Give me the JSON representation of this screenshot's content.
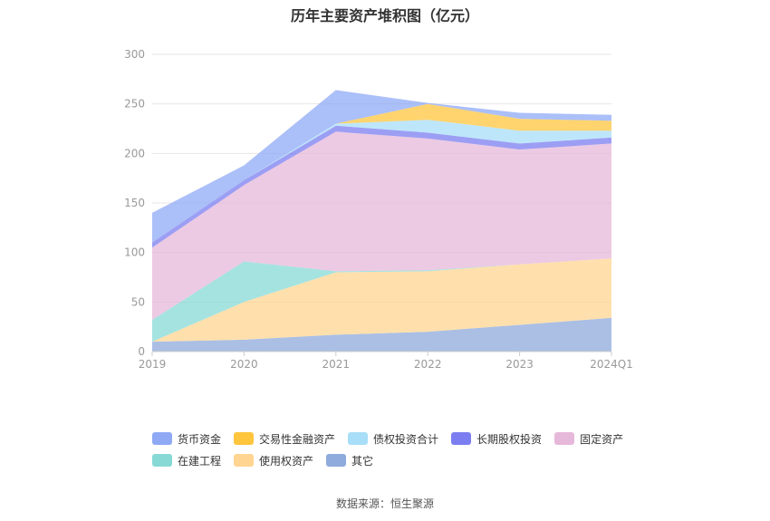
{
  "chart_data": {
    "type": "area",
    "title": "历年主要资产堆积图（亿元）",
    "x": [
      "2019",
      "2020",
      "2021",
      "2022",
      "2023",
      "2024Q1"
    ],
    "yticks": [
      "0",
      "50",
      "100",
      "150",
      "200",
      "250",
      "300"
    ],
    "ylim": [
      0,
      300
    ],
    "grid": true,
    "legend_position": "bottom",
    "series": [
      {
        "name": "其它",
        "color": "#8faadc",
        "values": [
          10,
          12,
          17,
          20,
          27,
          34
        ]
      },
      {
        "name": "使用权资产",
        "color": "#ffd591",
        "values": [
          0,
          38,
          63,
          61,
          61,
          60
        ]
      },
      {
        "name": "在建工程",
        "color": "#87d9d5",
        "values": [
          22,
          41,
          1,
          1,
          0,
          0
        ]
      },
      {
        "name": "固定资产",
        "color": "#e6b8d9",
        "values": [
          73,
          77,
          141,
          133,
          116,
          116
        ]
      },
      {
        "name": "长期股权投资",
        "color": "#7b7ef0",
        "values": [
          5,
          5,
          6,
          6,
          6,
          6
        ]
      },
      {
        "name": "债权投资合计",
        "color": "#a8def8",
        "values": [
          0,
          0,
          2,
          13,
          13,
          7
        ]
      },
      {
        "name": "交易性金融资产",
        "color": "#ffc53d",
        "values": [
          0,
          0,
          0,
          16,
          12,
          10
        ]
      },
      {
        "name": "货币资金",
        "color": "#8fa9f5",
        "values": [
          30,
          15,
          34,
          1,
          6,
          6
        ]
      }
    ],
    "legend_order": [
      "货币资金",
      "交易性金融资产",
      "债权投资合计",
      "长期股权投资",
      "固定资产",
      "在建工程",
      "使用权资产",
      "其它"
    ]
  },
  "source_text": "数据来源：恒生聚源"
}
